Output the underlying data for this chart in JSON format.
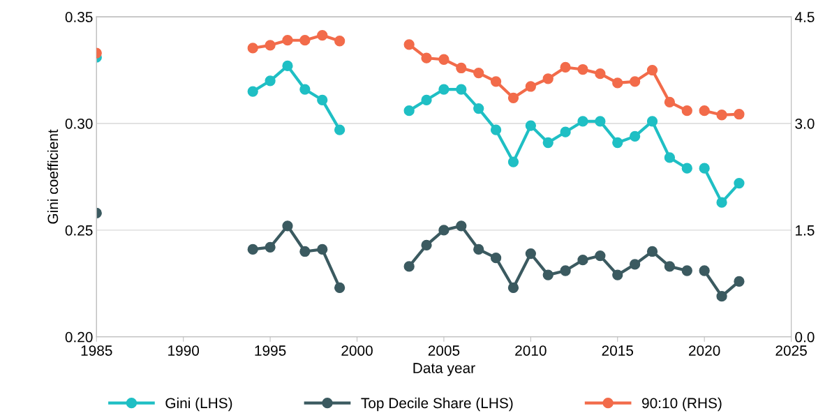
{
  "chart_data": {
    "type": "line",
    "xlabel": "Data year",
    "ylabel": "Gini coefficient",
    "x": [
      1985,
      1986,
      1994,
      1995,
      1996,
      1997,
      1998,
      1999,
      2000,
      2003,
      2004,
      2005,
      2006,
      2007,
      2008,
      2009,
      2010,
      2011,
      2012,
      2013,
      2014,
      2015,
      2016,
      2017,
      2018,
      2019,
      2019.5,
      2020,
      2021,
      2022
    ],
    "series": [
      {
        "name": "Gini (LHS)",
        "color": "#1fbfc4",
        "values": [
          0.331,
          null,
          0.315,
          0.32,
          0.327,
          0.316,
          0.311,
          0.297,
          null,
          0.306,
          0.311,
          0.316,
          0.316,
          0.307,
          0.297,
          0.282,
          0.299,
          0.291,
          0.296,
          0.301,
          0.301,
          0.291,
          0.294,
          0.301,
          0.284,
          0.279,
          null,
          0.279,
          0.263,
          0.272
        ]
      },
      {
        "name": "Top Decile Share (LHS)",
        "color": "#3b5a60",
        "values": [
          0.258,
          null,
          0.241,
          0.242,
          0.252,
          0.24,
          0.241,
          0.223,
          null,
          0.233,
          0.243,
          0.25,
          0.252,
          0.241,
          0.237,
          0.223,
          0.239,
          0.229,
          0.231,
          0.236,
          0.238,
          0.229,
          0.234,
          0.24,
          0.233,
          0.231,
          null,
          0.231,
          0.219,
          0.226
        ]
      },
      {
        "name": "90:10 (RHS)",
        "color": "#f26b4a",
        "axis": "y2",
        "values": [
          3.99,
          null,
          4.06,
          4.1,
          4.17,
          4.17,
          4.24,
          4.16,
          null,
          4.11,
          3.92,
          3.9,
          3.78,
          3.71,
          3.59,
          3.36,
          3.52,
          3.63,
          3.79,
          3.76,
          3.7,
          3.57,
          3.59,
          3.75,
          3.3,
          3.18,
          null,
          3.18,
          3.12,
          3.13
        ]
      }
    ],
    "xlim": [
      1985,
      2025
    ],
    "xticks": [
      1985,
      1990,
      1995,
      2000,
      2005,
      2010,
      2015,
      2020,
      2025
    ],
    "ylim": [
      0.2,
      0.35
    ],
    "yticks": [
      {
        "value": 0.2,
        "label": "0.20"
      },
      {
        "value": 0.25,
        "label": "0.25"
      },
      {
        "value": 0.3,
        "label": "0.30"
      },
      {
        "value": 0.35,
        "label": "0.35"
      }
    ],
    "y2lim": [
      0,
      4.5
    ],
    "y2ticks": [
      {
        "value": 0,
        "label": "0.0"
      },
      {
        "value": 1.5,
        "label": "1.5"
      },
      {
        "value": 3,
        "label": "3.0"
      },
      {
        "value": 4.5,
        "label": "4.5"
      }
    ],
    "grid": "y",
    "legend": "bottom",
    "marker": "circle",
    "line_style": "solid"
  }
}
